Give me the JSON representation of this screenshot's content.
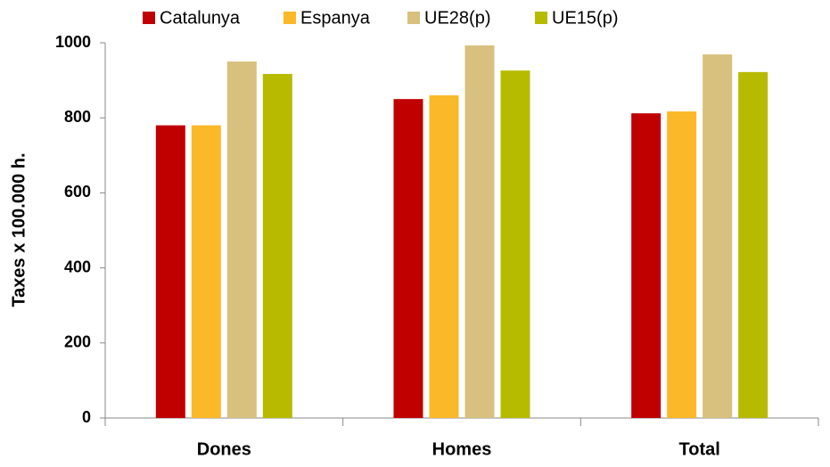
{
  "chart_data": {
    "type": "bar",
    "y_label": "Taxes x 100.000 h.",
    "categories": [
      "Dones",
      "Homes",
      "Total"
    ],
    "series": [
      {
        "name": "Catalunya",
        "color": "#c00000",
        "values": [
          780,
          850,
          812
        ]
      },
      {
        "name": "Espanya",
        "color": "#fbb829",
        "values": [
          780,
          860,
          817
        ]
      },
      {
        "name": "UE28(p)",
        "color": "#d8c07e",
        "values": [
          950,
          993,
          969
        ]
      },
      {
        "name": "UE15(p)",
        "color": "#b7bb00",
        "values": [
          917,
          926,
          922
        ]
      }
    ],
    "ylim": [
      0,
      1000
    ],
    "yticks": [
      0,
      200,
      400,
      600,
      800,
      1000
    ],
    "grid": false,
    "legend": "top"
  }
}
